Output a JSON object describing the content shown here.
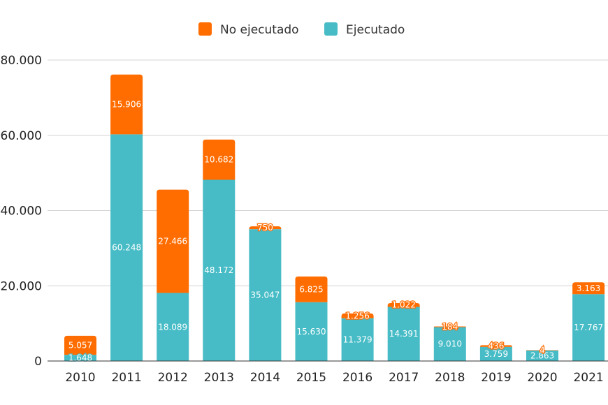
{
  "chart_data": {
    "type": "bar",
    "stacked": true,
    "title": "",
    "xlabel": "",
    "ylabel": "",
    "ylim": [
      0,
      80000
    ],
    "yticks": [
      0,
      20000,
      40000,
      60000,
      80000
    ],
    "ytick_labels": [
      "0",
      "20.000",
      "40.000",
      "60.000",
      "80.000"
    ],
    "grid": true,
    "legend_position": "top-center",
    "categories": [
      "2010",
      "2011",
      "2012",
      "2013",
      "2014",
      "2015",
      "2016",
      "2017",
      "2018",
      "2019",
      "2020",
      "2021"
    ],
    "series": [
      {
        "name": "Ejecutado",
        "color": "#47bcc6",
        "values": [
          1648,
          60248,
          18089,
          48172,
          35047,
          15630,
          11379,
          14391,
          9010,
          3759,
          2863,
          17767
        ],
        "labels": [
          "1.648",
          "60.248",
          "18.089",
          "48.172",
          "35.047",
          "15.630",
          "11.379",
          "14.391",
          "9.010",
          "3.759",
          "2.863",
          "17.767"
        ]
      },
      {
        "name": "No ejecutado",
        "color": "#ff6d01",
        "values": [
          5057,
          15906,
          27466,
          10682,
          750,
          6825,
          1256,
          1022,
          184,
          436,
          4,
          3163
        ],
        "labels": [
          "5.057",
          "15.906",
          "27.466",
          "10.682",
          "750",
          "6.825",
          "1.256",
          "1.022",
          "184",
          "436",
          "4",
          "3.163"
        ]
      }
    ],
    "legend": [
      {
        "name": "No ejecutado",
        "color": "#ff6d01"
      },
      {
        "name": "Ejecutado",
        "color": "#47bcc6"
      }
    ]
  }
}
